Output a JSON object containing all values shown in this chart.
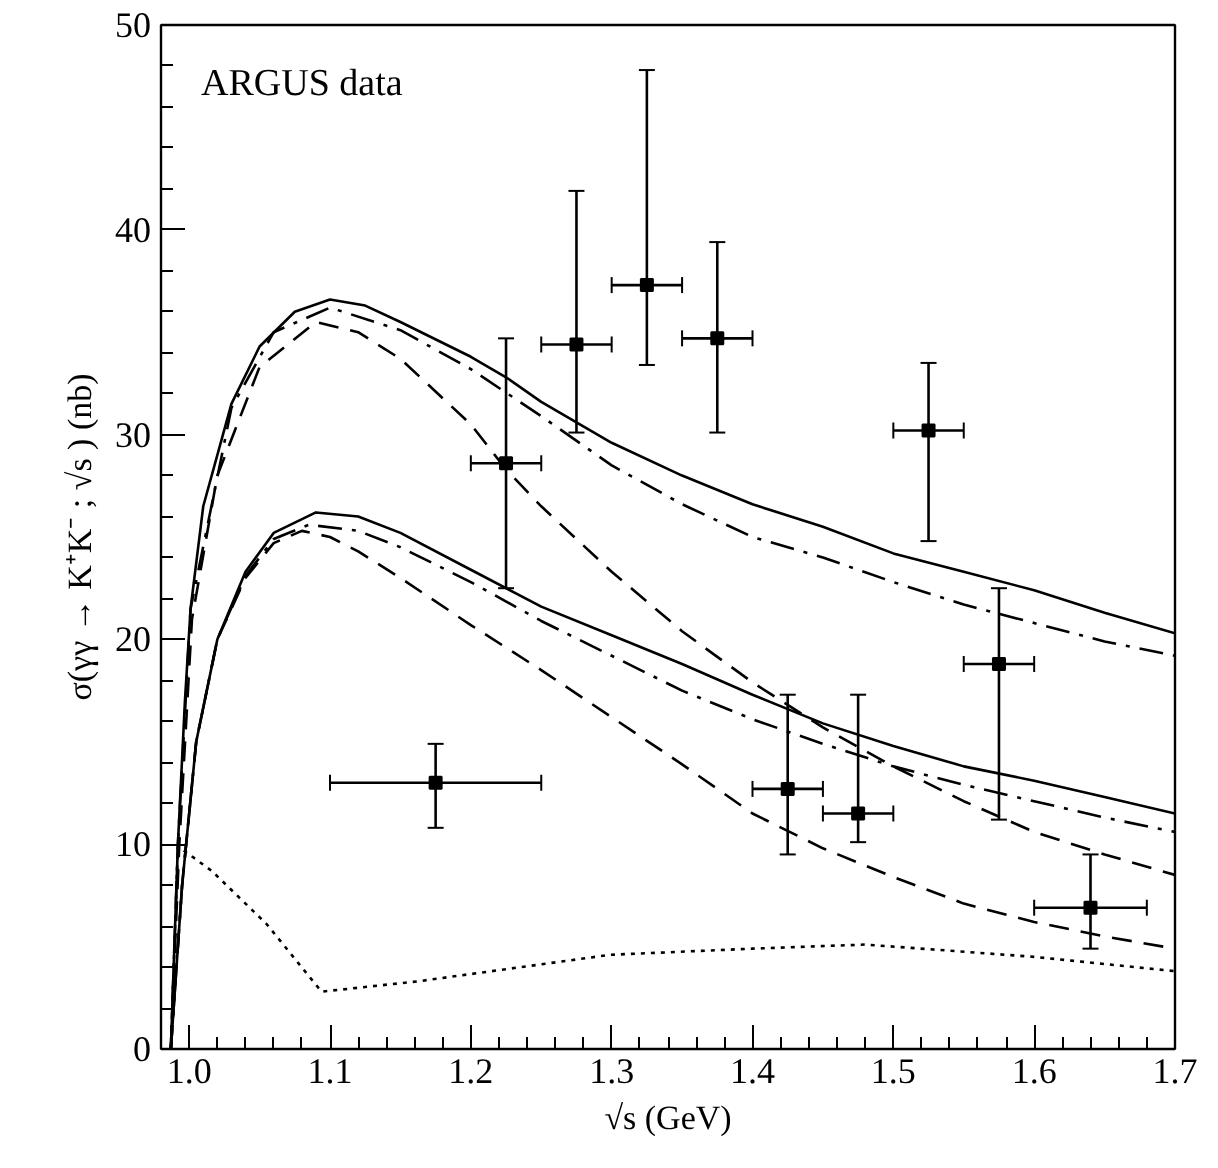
{
  "chart_data": {
    "type": "line",
    "xlabel": "√s (GeV)",
    "ylabel": "σ(γγ → K⁺K⁻ ; √s ) (nb)",
    "annotations": [
      "ARGUS data"
    ],
    "xlim": [
      0.98,
      1.7
    ],
    "ylim": [
      0,
      50
    ],
    "xticks": [
      {
        "value": 1.0,
        "label": "1.0"
      },
      1.1,
      1.2,
      1.3,
      1.4,
      1.5,
      1.6,
      1.7
    ],
    "yticks": [
      0,
      10,
      20,
      30,
      40,
      50
    ],
    "grid": false,
    "series": [
      {
        "line_style": "solid",
        "color": "#000000",
        "x": [
          0.987,
          0.992,
          0.997,
          1.001,
          1.01,
          1.03,
          1.05,
          1.075,
          1.1,
          1.125,
          1.15,
          1.2,
          1.225,
          1.25,
          1.3,
          1.35,
          1.4,
          1.45,
          1.5,
          1.55,
          1.6,
          1.65,
          1.7
        ],
        "values": [
          0,
          10,
          17,
          21.5,
          26.5,
          31.5,
          34.3,
          36,
          36.6,
          36.3,
          35.5,
          33.8,
          32.8,
          31.6,
          29.6,
          28,
          26.6,
          25.5,
          24.2,
          23.3,
          22.4,
          21.3,
          20.3
        ]
      },
      {
        "line_style": "dashdot",
        "color": "#000000",
        "x": [
          0.987,
          0.992,
          1.001,
          1.03,
          1.06,
          1.1,
          1.15,
          1.2,
          1.25,
          1.3,
          1.35,
          1.4,
          1.45,
          1.5,
          1.55,
          1.6,
          1.65,
          1.7
        ],
        "values": [
          0,
          10,
          21.5,
          31.3,
          35,
          36.2,
          35.1,
          33.2,
          30.9,
          28.5,
          26.6,
          25,
          24,
          22.8,
          21.7,
          20.8,
          19.9,
          19.2
        ]
      },
      {
        "line_style": "dashed",
        "color": "#000000",
        "x": [
          0.987,
          0.993,
          1.002,
          1.02,
          1.05,
          1.09,
          1.12,
          1.15,
          1.2,
          1.225,
          1.25,
          1.3,
          1.35,
          1.4,
          1.45,
          1.5,
          1.55,
          1.6,
          1.65,
          1.7
        ],
        "values": [
          0,
          10,
          21,
          28,
          33.3,
          35.5,
          35,
          33.7,
          30.5,
          28.3,
          26.5,
          23.3,
          20.4,
          17.9,
          15.7,
          13.8,
          12.1,
          10.6,
          9.5,
          8.5
        ]
      },
      {
        "line_style": "solid",
        "color": "#000000",
        "x": [
          0.987,
          0.995,
          1.005,
          1.02,
          1.04,
          1.06,
          1.09,
          1.12,
          1.15,
          1.2,
          1.25,
          1.3,
          1.35,
          1.4,
          1.45,
          1.5,
          1.55,
          1.6,
          1.65,
          1.7
        ],
        "values": [
          0,
          8,
          15,
          20,
          23.3,
          25.2,
          26.2,
          26,
          25.2,
          23.4,
          21.6,
          20.2,
          18.8,
          17.3,
          15.9,
          14.8,
          13.8,
          13.1,
          12.3,
          11.5
        ]
      },
      {
        "line_style": "dashdot",
        "color": "#000000",
        "x": [
          0.987,
          0.995,
          1.005,
          1.02,
          1.04,
          1.06,
          1.085,
          1.12,
          1.15,
          1.2,
          1.25,
          1.3,
          1.35,
          1.4,
          1.45,
          1.5,
          1.55,
          1.6,
          1.65,
          1.7
        ],
        "values": [
          0,
          8,
          15,
          20,
          23.1,
          24.9,
          25.6,
          25.3,
          24.5,
          22.8,
          20.9,
          19.2,
          17.5,
          16.1,
          14.9,
          13.8,
          12.9,
          12.1,
          11.3,
          10.6
        ]
      },
      {
        "line_style": "dashed",
        "color": "#000000",
        "x": [
          0.987,
          0.995,
          1.005,
          1.02,
          1.04,
          1.06,
          1.08,
          1.1,
          1.12,
          1.15,
          1.2,
          1.25,
          1.3,
          1.35,
          1.4,
          1.45,
          1.5,
          1.55,
          1.6,
          1.65,
          1.7
        ],
        "values": [
          0,
          8,
          15,
          20,
          23,
          24.7,
          25.3,
          25,
          24.3,
          23,
          20.7,
          18.5,
          16.2,
          13.9,
          11.5,
          9.8,
          8.4,
          7.1,
          6.2,
          5.5,
          4.9
        ]
      },
      {
        "line_style": "dotted",
        "color": "#000000",
        "x": [
          0.987,
          0.992,
          1.016,
          1.055,
          1.094,
          1.162,
          1.299,
          1.4,
          1.48,
          1.6,
          1.7
        ],
        "values": [
          0,
          9.9,
          8.7,
          6.1,
          2.8,
          3.3,
          4.6,
          4.9,
          5.1,
          4.5,
          3.8
        ]
      },
      {
        "type": "scatter",
        "marker": "square",
        "color": "#000000",
        "x": [
          1.175,
          1.225,
          1.275,
          1.325,
          1.375,
          1.425,
          1.475,
          1.525,
          1.575,
          1.64
        ],
        "values": [
          13.0,
          28.6,
          34.4,
          37.3,
          34.7,
          12.7,
          11.5,
          30.2,
          18.8,
          6.9
        ],
        "errors": [
          [
            10.8,
            14.9
          ],
          [
            22.5,
            34.7
          ],
          [
            30.1,
            41.9
          ],
          [
            33.4,
            47.8
          ],
          [
            30.1,
            39.4
          ],
          [
            9.5,
            17.3
          ],
          [
            10.1,
            17.3
          ],
          [
            24.8,
            33.5
          ],
          [
            11.2,
            22.5
          ],
          [
            4.9,
            9.5
          ]
        ],
        "xerrors": [
          [
            1.1,
            1.25
          ],
          [
            1.2,
            1.25
          ],
          [
            1.25,
            1.3
          ],
          [
            1.3,
            1.35
          ],
          [
            1.35,
            1.4
          ],
          [
            1.4,
            1.45
          ],
          [
            1.45,
            1.5
          ],
          [
            1.5,
            1.55
          ],
          [
            1.55,
            1.6
          ],
          [
            1.6,
            1.68
          ]
        ]
      }
    ]
  }
}
